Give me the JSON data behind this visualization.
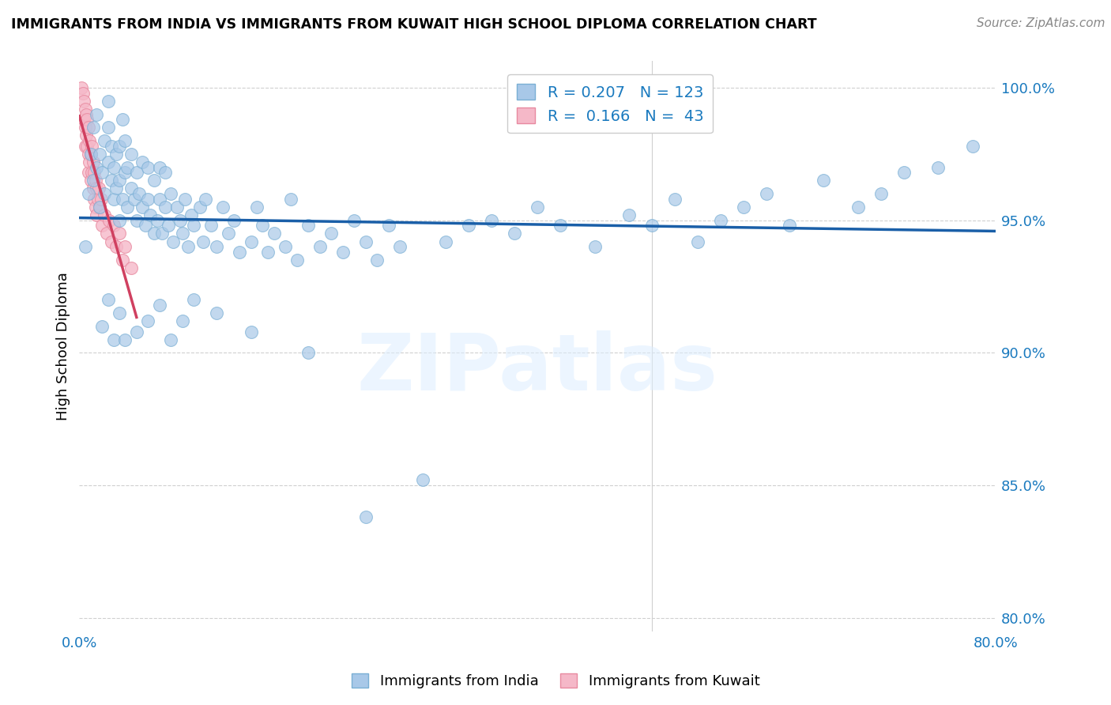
{
  "title": "IMMIGRANTS FROM INDIA VS IMMIGRANTS FROM KUWAIT HIGH SCHOOL DIPLOMA CORRELATION CHART",
  "source": "Source: ZipAtlas.com",
  "ylabel": "High School Diploma",
  "legend_bottom": [
    "Immigrants from India",
    "Immigrants from Kuwait"
  ],
  "india_R": 0.207,
  "india_N": 123,
  "kuwait_R": 0.166,
  "kuwait_N": 43,
  "india_color": "#a8c8e8",
  "india_edge_color": "#7aafd4",
  "kuwait_color": "#f5b8c8",
  "kuwait_edge_color": "#e88aa0",
  "india_line_color": "#1a5fa8",
  "kuwait_line_color": "#d04060",
  "xlim": [
    0.0,
    0.8
  ],
  "ylim": [
    0.795,
    1.01
  ],
  "xticks": [
    0.0,
    0.1,
    0.2,
    0.3,
    0.4,
    0.5,
    0.6,
    0.7,
    0.8
  ],
  "xticklabels": [
    "0.0%",
    "",
    "",
    "",
    "",
    "",
    "",
    "",
    "80.0%"
  ],
  "ytick_positions": [
    0.8,
    0.85,
    0.9,
    0.95,
    1.0
  ],
  "yticklabels": [
    "80.0%",
    "85.0%",
    "90.0%",
    "95.0%",
    "100.0%"
  ],
  "india_x": [
    0.005,
    0.008,
    0.01,
    0.012,
    0.012,
    0.015,
    0.015,
    0.018,
    0.018,
    0.02,
    0.022,
    0.022,
    0.025,
    0.025,
    0.025,
    0.028,
    0.028,
    0.03,
    0.03,
    0.032,
    0.032,
    0.035,
    0.035,
    0.035,
    0.038,
    0.038,
    0.04,
    0.04,
    0.042,
    0.042,
    0.045,
    0.045,
    0.048,
    0.05,
    0.05,
    0.052,
    0.055,
    0.055,
    0.058,
    0.06,
    0.06,
    0.062,
    0.065,
    0.065,
    0.068,
    0.07,
    0.07,
    0.072,
    0.075,
    0.075,
    0.078,
    0.08,
    0.082,
    0.085,
    0.088,
    0.09,
    0.092,
    0.095,
    0.098,
    0.1,
    0.105,
    0.108,
    0.11,
    0.115,
    0.12,
    0.125,
    0.13,
    0.135,
    0.14,
    0.15,
    0.155,
    0.16,
    0.165,
    0.17,
    0.18,
    0.185,
    0.19,
    0.2,
    0.21,
    0.22,
    0.23,
    0.24,
    0.25,
    0.26,
    0.27,
    0.28,
    0.3,
    0.32,
    0.34,
    0.36,
    0.38,
    0.4,
    0.42,
    0.45,
    0.48,
    0.5,
    0.52,
    0.54,
    0.56,
    0.58,
    0.6,
    0.62,
    0.65,
    0.68,
    0.7,
    0.72,
    0.75,
    0.78,
    0.02,
    0.025,
    0.03,
    0.035,
    0.04,
    0.05,
    0.06,
    0.07,
    0.08,
    0.09,
    0.1,
    0.12,
    0.15,
    0.2,
    0.25
  ],
  "india_y": [
    0.94,
    0.96,
    0.975,
    0.965,
    0.985,
    0.97,
    0.99,
    0.955,
    0.975,
    0.968,
    0.96,
    0.98,
    0.972,
    0.985,
    0.995,
    0.965,
    0.978,
    0.958,
    0.97,
    0.962,
    0.975,
    0.95,
    0.965,
    0.978,
    0.988,
    0.958,
    0.968,
    0.98,
    0.955,
    0.97,
    0.962,
    0.975,
    0.958,
    0.95,
    0.968,
    0.96,
    0.955,
    0.972,
    0.948,
    0.958,
    0.97,
    0.952,
    0.945,
    0.965,
    0.95,
    0.958,
    0.97,
    0.945,
    0.955,
    0.968,
    0.948,
    0.96,
    0.942,
    0.955,
    0.95,
    0.945,
    0.958,
    0.94,
    0.952,
    0.948,
    0.955,
    0.942,
    0.958,
    0.948,
    0.94,
    0.955,
    0.945,
    0.95,
    0.938,
    0.942,
    0.955,
    0.948,
    0.938,
    0.945,
    0.94,
    0.958,
    0.935,
    0.948,
    0.94,
    0.945,
    0.938,
    0.95,
    0.942,
    0.935,
    0.948,
    0.94,
    0.852,
    0.942,
    0.948,
    0.95,
    0.945,
    0.955,
    0.948,
    0.94,
    0.952,
    0.948,
    0.958,
    0.942,
    0.95,
    0.955,
    0.96,
    0.948,
    0.965,
    0.955,
    0.96,
    0.968,
    0.97,
    0.978,
    0.91,
    0.92,
    0.905,
    0.915,
    0.905,
    0.908,
    0.912,
    0.918,
    0.905,
    0.912,
    0.92,
    0.915,
    0.908,
    0.9,
    0.838
  ],
  "kuwait_x": [
    0.002,
    0.003,
    0.004,
    0.004,
    0.005,
    0.005,
    0.005,
    0.006,
    0.006,
    0.007,
    0.007,
    0.008,
    0.008,
    0.008,
    0.009,
    0.009,
    0.01,
    0.01,
    0.011,
    0.011,
    0.012,
    0.012,
    0.013,
    0.013,
    0.014,
    0.014,
    0.015,
    0.015,
    0.016,
    0.017,
    0.018,
    0.019,
    0.02,
    0.022,
    0.024,
    0.026,
    0.028,
    0.03,
    0.032,
    0.035,
    0.038,
    0.04,
    0.045
  ],
  "kuwait_y": [
    1.0,
    0.998,
    0.995,
    0.988,
    0.992,
    0.985,
    0.978,
    0.99,
    0.982,
    0.988,
    0.978,
    0.985,
    0.975,
    0.968,
    0.98,
    0.972,
    0.975,
    0.965,
    0.978,
    0.968,
    0.972,
    0.962,
    0.968,
    0.958,
    0.965,
    0.955,
    0.962,
    0.952,
    0.958,
    0.962,
    0.955,
    0.958,
    0.948,
    0.952,
    0.945,
    0.95,
    0.942,
    0.948,
    0.94,
    0.945,
    0.935,
    0.94,
    0.932
  ],
  "watermark_text": "ZIPatlas",
  "background_color": "#ffffff",
  "grid_color": "#d0d0d0",
  "vline_x": 0.5
}
